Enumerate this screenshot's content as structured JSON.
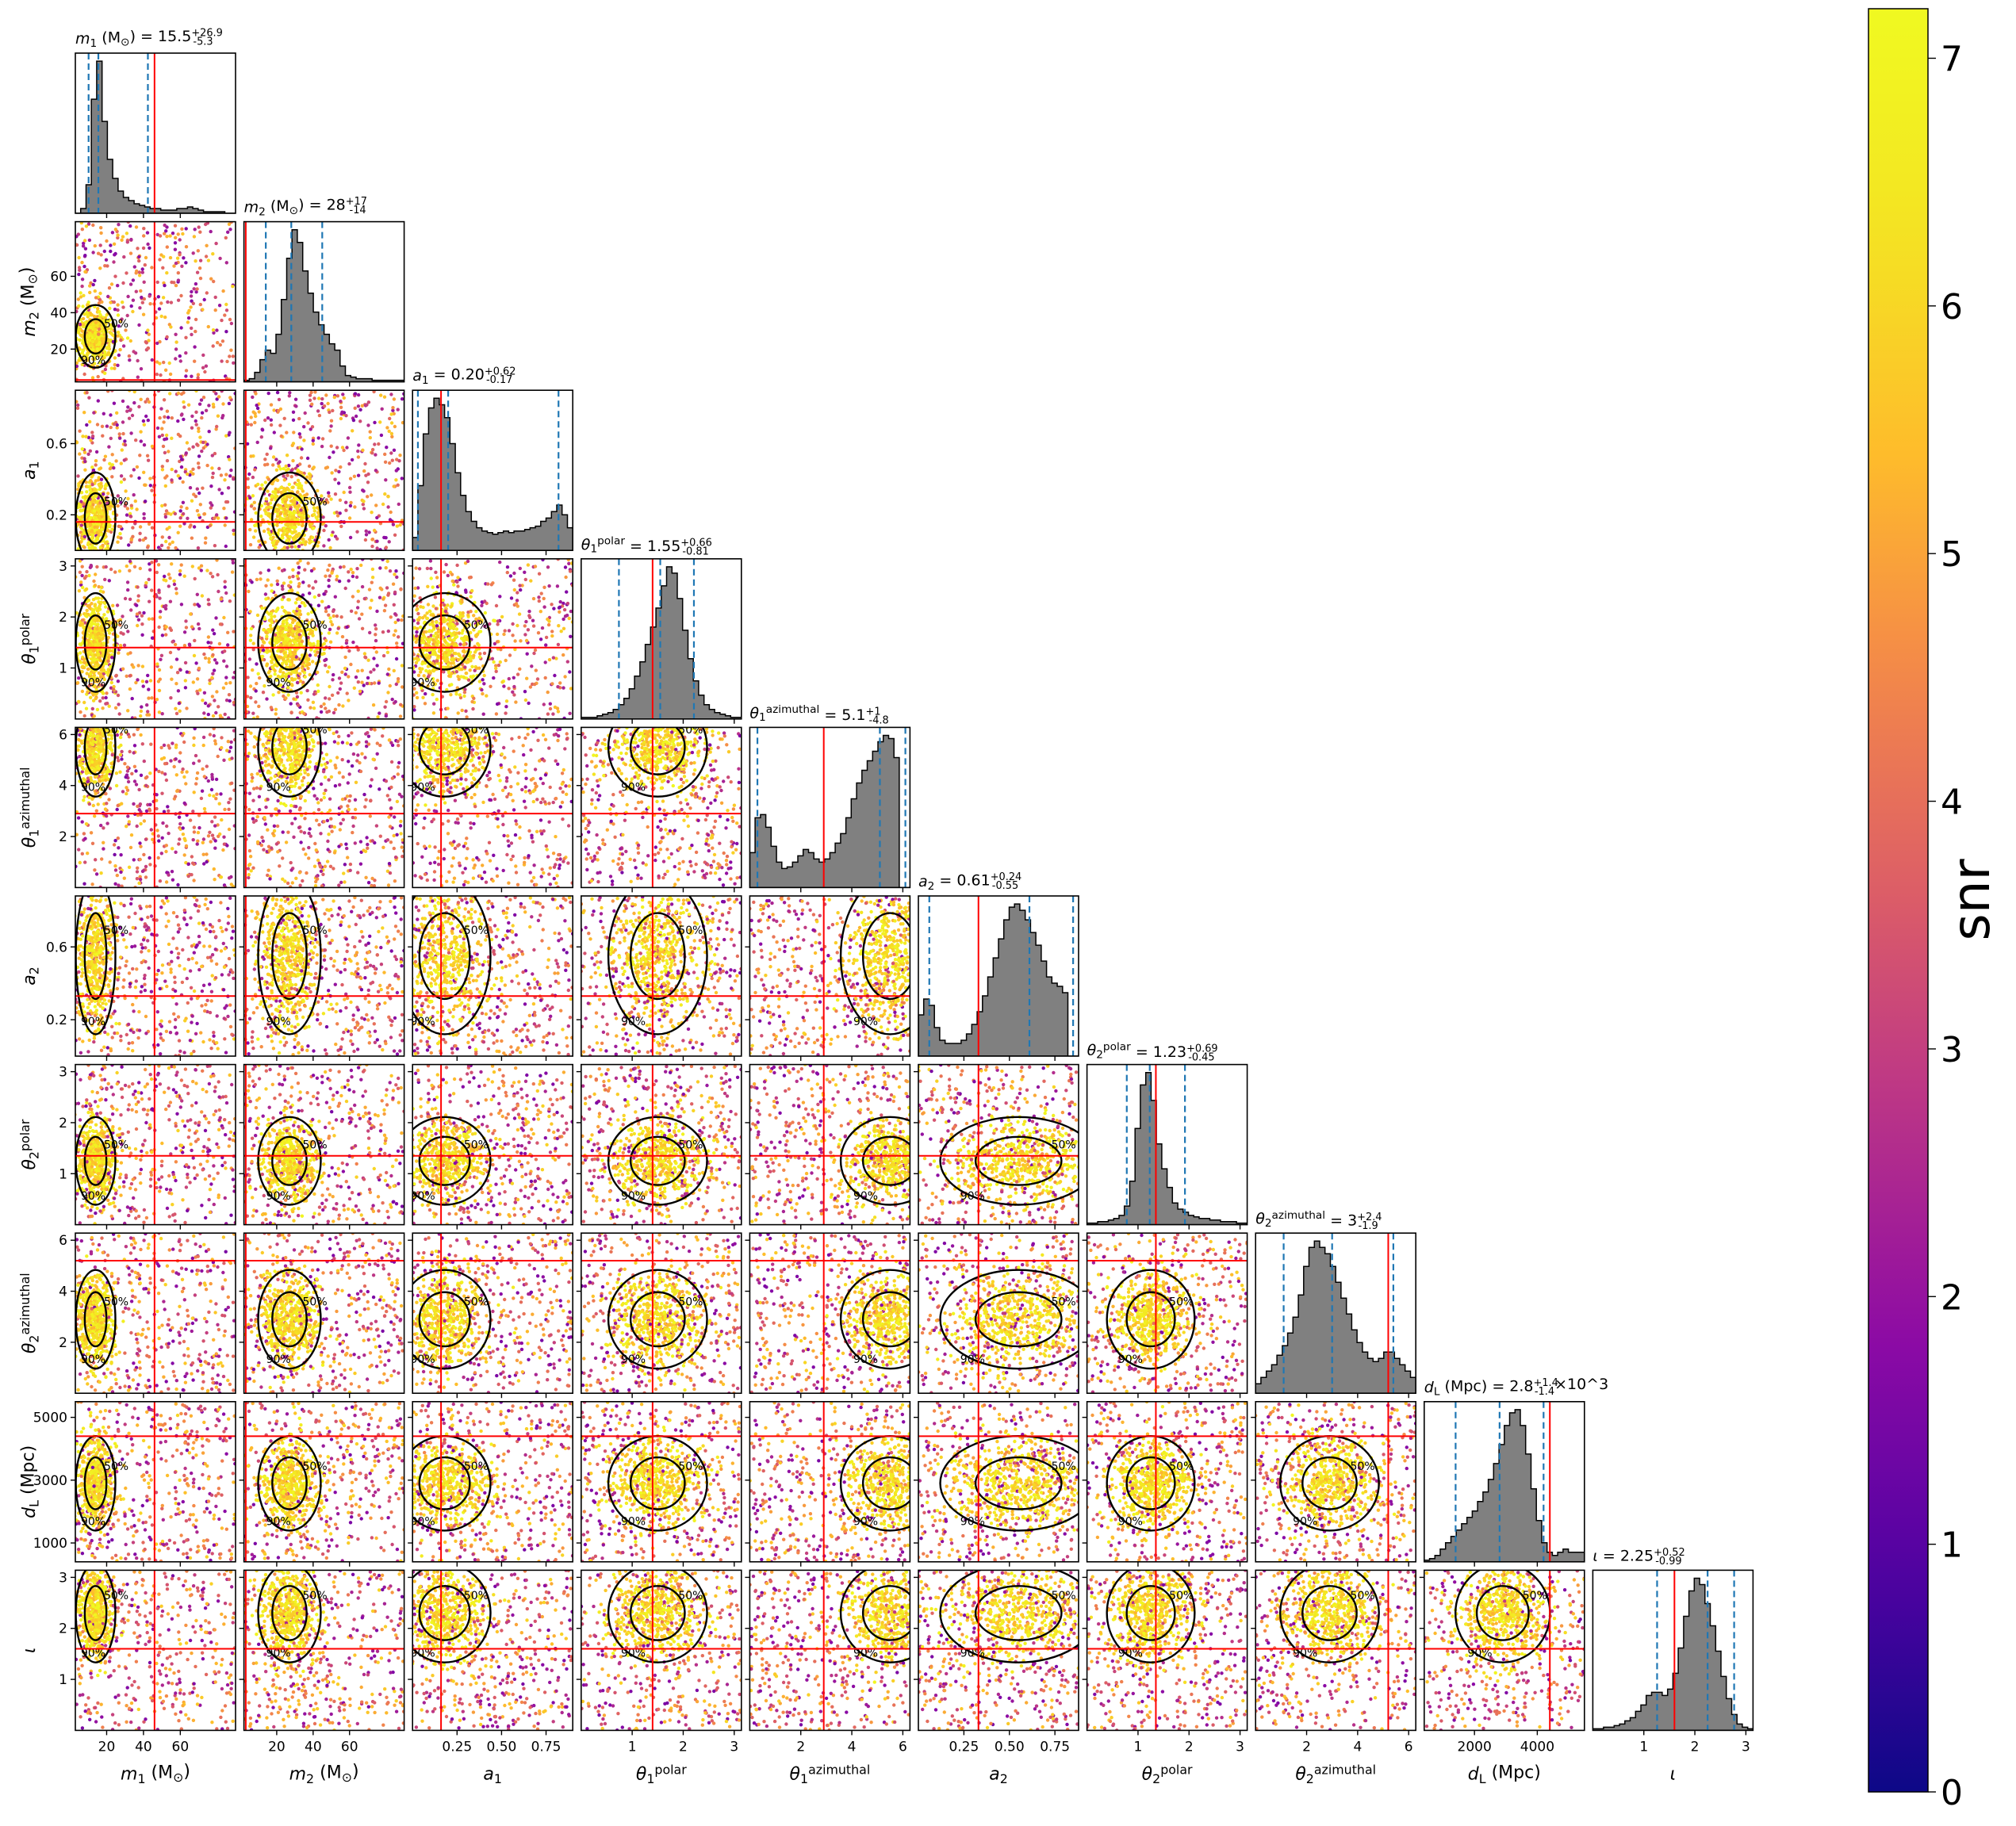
{
  "chart_data": {
    "type": "corner-scatter-histogram",
    "parameters": [
      {
        "key": "m1",
        "label": "m_1 (M_⊙)",
        "title": "m_1 (M_⊙) = 15.5^{+26.9}_{-5.3}",
        "range": [
          3,
          90
        ],
        "ticks": [
          20,
          40,
          60
        ],
        "tick_labels": [
          "20",
          "40",
          "60"
        ],
        "median": 15.5,
        "lo": 10.2,
        "hi": 42.4,
        "true": 46,
        "mode": [
          14,
          5
        ],
        "hist": [
          0,
          3,
          18,
          72,
          96,
          58,
          34,
          22,
          14,
          10,
          8,
          6,
          5,
          4,
          3,
          3,
          2,
          2,
          2,
          3,
          3,
          4,
          3,
          2,
          1,
          1,
          1,
          1,
          0,
          0
        ]
      },
      {
        "key": "m2",
        "label": "m_2 (M_⊙)",
        "title": "m_2 (M_⊙) = 28^{+17}_{-14}",
        "range": [
          2,
          90
        ],
        "ticks": [
          20,
          40,
          60
        ],
        "tick_labels": [
          "20",
          "40",
          "60"
        ],
        "median": 28,
        "lo": 14,
        "hi": 45,
        "true": 3,
        "mode": [
          27,
          8
        ],
        "hist": [
          1,
          2,
          6,
          14,
          20,
          18,
          30,
          52,
          78,
          96,
          88,
          70,
          56,
          44,
          36,
          30,
          24,
          20,
          10,
          4,
          3,
          2,
          2,
          2,
          1,
          1,
          1,
          1,
          1,
          1
        ]
      },
      {
        "key": "a1",
        "label": "a_1",
        "title": "a_1 = 0.20^{+0.62}_{-0.17}",
        "range": [
          0,
          0.9
        ],
        "ticks": [
          0.25,
          0.5,
          0.75
        ],
        "tick_labels": [
          "0.25",
          "0.50",
          "0.75"
        ],
        "ticks_y": [
          0.2,
          0.6
        ],
        "tick_labels_y": [
          "0.2",
          "0.6"
        ],
        "median": 0.2,
        "lo": 0.03,
        "hi": 0.82,
        "true": 0.16,
        "mode": [
          0.18,
          0.12
        ],
        "hist": [
          8,
          40,
          72,
          88,
          94,
          90,
          82,
          66,
          48,
          34,
          24,
          18,
          14,
          12,
          11,
          10,
          11,
          12,
          11,
          12,
          12,
          13,
          14,
          15,
          18,
          20,
          24,
          28,
          22,
          14
        ]
      },
      {
        "key": "theta1_polar",
        "label": "θ_1^polar",
        "title": "θ_1^polar = 1.55^{+0.66}_{-0.81}",
        "range": [
          0,
          3.14
        ],
        "ticks": [
          1,
          2,
          3
        ],
        "tick_labels": [
          "1",
          "2",
          "3"
        ],
        "median": 1.55,
        "lo": 0.74,
        "hi": 2.21,
        "true": 1.4,
        "mode": [
          1.5,
          0.45
        ],
        "hist": [
          1,
          1,
          1,
          2,
          3,
          4,
          6,
          9,
          13,
          19,
          27,
          36,
          47,
          58,
          70,
          84,
          96,
          92,
          76,
          56,
          38,
          24,
          15,
          9,
          6,
          4,
          3,
          2,
          1,
          1
        ]
      },
      {
        "key": "theta1_azimuthal",
        "label": "θ_1^azimuthal",
        "title": "θ_1^azimuthal = 5.1^{+1}_{-4.8}",
        "range": [
          0,
          6.28
        ],
        "ticks": [
          2,
          4,
          6
        ],
        "tick_labels": [
          "2",
          "4",
          "6"
        ],
        "median": 5.1,
        "lo": 0.3,
        "hi": 6.1,
        "true": 2.9,
        "mode": [
          5.5,
          0.9
        ],
        "hist": [
          22,
          44,
          46,
          38,
          26,
          16,
          12,
          13,
          16,
          20,
          24,
          22,
          18,
          16,
          18,
          22,
          28,
          34,
          44,
          56,
          66,
          74,
          80,
          86,
          92,
          96,
          94,
          82,
          0,
          0
        ]
      },
      {
        "key": "a2",
        "label": "a_2",
        "title": "a_2 = 0.61^{+0.24}_{-0.55}",
        "range": [
          0,
          0.88
        ],
        "ticks": [
          0.25,
          0.5,
          0.75
        ],
        "tick_labels": [
          "0.25",
          "0.50",
          "0.75"
        ],
        "ticks_y": [
          0.2,
          0.6
        ],
        "tick_labels_y": [
          "0.2",
          "0.6"
        ],
        "median": 0.61,
        "lo": 0.06,
        "hi": 0.85,
        "true": 0.33,
        "mode": [
          0.55,
          0.2
        ],
        "hist": [
          26,
          36,
          32,
          18,
          10,
          8,
          8,
          8,
          10,
          14,
          20,
          28,
          38,
          50,
          62,
          74,
          86,
          94,
          96,
          92,
          86,
          78,
          70,
          60,
          50,
          46,
          44,
          40,
          0,
          0
        ]
      },
      {
        "key": "theta2_polar",
        "label": "θ_2^polar",
        "title": "θ_2^polar = 1.23^{+0.69}_{-0.45}",
        "range": [
          0,
          3.14
        ],
        "ticks": [
          1,
          2,
          3
        ],
        "tick_labels": [
          "1",
          "2",
          "3"
        ],
        "median": 1.23,
        "lo": 0.78,
        "hi": 1.92,
        "true": 1.35,
        "mode": [
          1.25,
          0.4
        ],
        "hist": [
          1,
          1,
          2,
          2,
          3,
          4,
          6,
          12,
          28,
          62,
          90,
          98,
          80,
          52,
          36,
          24,
          14,
          10,
          8,
          6,
          5,
          4,
          4,
          3,
          3,
          2,
          2,
          2,
          1,
          1
        ]
      },
      {
        "key": "theta2_azimuthal",
        "label": "θ_2^azimuthal",
        "title": "θ_2^azimuthal = 3^{+2.4}_{-1.9}",
        "range": [
          0,
          6.28
        ],
        "ticks": [
          2,
          4,
          6
        ],
        "tick_labels": [
          "2",
          "4",
          "6"
        ],
        "median": 3,
        "lo": 1.1,
        "hi": 5.4,
        "true": 5.2,
        "mode": [
          2.9,
          0.9
        ],
        "hist": [
          6,
          10,
          14,
          18,
          24,
          30,
          38,
          48,
          62,
          80,
          92,
          96,
          92,
          88,
          80,
          70,
          60,
          50,
          40,
          32,
          26,
          22,
          20,
          22,
          26,
          26,
          22,
          18,
          14,
          10
        ]
      },
      {
        "key": "dL",
        "label": "d_L (Mpc)",
        "title": "d_L (Mpc) = 2.8^{+1.4}_{-1.4}×10^3",
        "range": [
          400,
          5500
        ],
        "ticks": [
          2000,
          4000
        ],
        "tick_labels": [
          "2000",
          "4000"
        ],
        "ticks_y": [
          1000,
          3000,
          5000
        ],
        "tick_labels_y": [
          "1000",
          "3000",
          "5000"
        ],
        "median": 2800,
        "lo": 1400,
        "hi": 4200,
        "true": 4400,
        "mode": [
          2900,
          700
        ],
        "hist": [
          1,
          2,
          4,
          8,
          12,
          16,
          20,
          24,
          28,
          32,
          38,
          44,
          52,
          62,
          74,
          86,
          94,
          96,
          86,
          68,
          46,
          26,
          12,
          6,
          4,
          6,
          8,
          6,
          6,
          6
        ]
      },
      {
        "key": "iota",
        "label": "ι",
        "title": "ι = 2.25^{+0.52}_{-0.99}",
        "range": [
          0,
          3.14
        ],
        "ticks": [
          1,
          2,
          3
        ],
        "tick_labels": [
          "1",
          "2",
          "3"
        ],
        "median": 2.25,
        "lo": 1.26,
        "hi": 2.77,
        "true": 1.6,
        "mode": [
          2.3,
          0.45
        ],
        "hist": [
          1,
          1,
          2,
          2,
          3,
          4,
          6,
          8,
          12,
          16,
          22,
          24,
          24,
          22,
          26,
          36,
          52,
          72,
          88,
          96,
          92,
          80,
          66,
          50,
          34,
          20,
          10,
          4,
          2,
          1
        ]
      }
    ],
    "contour_levels": [
      "50%",
      "90%"
    ],
    "colorbar": {
      "label": "snr",
      "range": [
        0,
        7.2
      ],
      "ticks": [
        0,
        1,
        2,
        3,
        4,
        5,
        6,
        7
      ],
      "tick_labels": [
        "0",
        "1",
        "2",
        "3",
        "4",
        "5",
        "6",
        "7"
      ],
      "colormap": "plasma"
    },
    "colors": {
      "histogram_fill": "#808080",
      "median_lines": "#1f77b4",
      "truth_lines": "#ff0000",
      "contours": "#000000"
    }
  }
}
